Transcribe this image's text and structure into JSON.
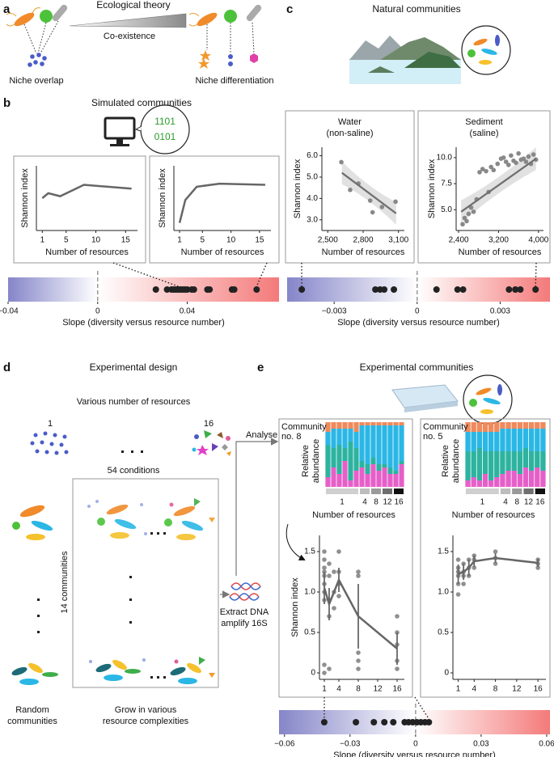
{
  "panels": {
    "a": {
      "label": "a",
      "title": "Ecological theory",
      "arrow": "Co-existence",
      "left": "Niche overlap",
      "right": "Niche differentiation"
    },
    "b": {
      "label": "b",
      "title": "Simulated communities",
      "code": [
        "1101",
        "0101"
      ]
    },
    "c": {
      "label": "c",
      "title": "Natural communities"
    },
    "d": {
      "label": "d",
      "title": "Experimental design",
      "resources": "Various number of resources",
      "min": "1",
      "max": "16",
      "conditions": "54 conditions",
      "communities": "14 communities",
      "random": [
        "Random",
        "communities"
      ],
      "grow": [
        "Grow in various",
        "resource complexities"
      ],
      "analyse": "Analyse",
      "extract": [
        "Extract DNA",
        "amplify 16S"
      ]
    },
    "e": {
      "label": "e",
      "title": "Experimental communities"
    }
  },
  "chart_data": [
    {
      "type": "line",
      "ylabel": "Shannon index",
      "xlabel": "Number of resources",
      "x": [
        1,
        2,
        4,
        8,
        16
      ],
      "values": [
        1.25,
        1.38,
        1.3,
        1.6,
        1.5
      ],
      "color": "#666666",
      "xlim": [
        0,
        17
      ],
      "ylim": [
        0.4,
        2.1
      ],
      "xticks": [
        1,
        5,
        10,
        15
      ]
    },
    {
      "type": "line",
      "ylabel": "Shannon index",
      "xlabel": "Number of resources",
      "x": [
        1,
        2,
        4,
        8,
        16
      ],
      "values": [
        0.6,
        1.2,
        1.55,
        1.63,
        1.6
      ],
      "color": "#666666",
      "xlim": [
        0,
        17
      ],
      "ylim": [
        0.4,
        2.1
      ],
      "xticks": [
        1,
        5,
        10,
        15
      ]
    },
    {
      "type": "strip",
      "xlabel": "Slope (diversity versus resource number)",
      "values": [
        0.026,
        0.031,
        0.033,
        0.034,
        0.035,
        0.036,
        0.037,
        0.038,
        0.039,
        0.04,
        0.042,
        0.043,
        0.049,
        0.05,
        0.06,
        0.061,
        0.071
      ],
      "color": "#222222",
      "gradient": [
        "#8585c9",
        "#ffffff",
        "#f47a7a"
      ],
      "xlim": [
        -0.04,
        0.081
      ],
      "xticks": [
        {
          "value": -0.04,
          "label": "−0.04"
        },
        0,
        0.04
      ]
    },
    {
      "type": "scatter",
      "title": [
        "Water",
        "(non-saline)"
      ],
      "ylabel": "Shannon index",
      "xlabel": "Number of resources",
      "x": [
        2615,
        2690,
        2760,
        2860,
        2880,
        2960,
        3075
      ],
      "values": [
        5.7,
        4.4,
        4.7,
        3.9,
        3.35,
        3.6,
        3.85
      ],
      "color": "#888888",
      "fit": {
        "x": [
          2620,
          3080
        ],
        "values": [
          5.2,
          3.3
        ],
        "color": "#6e6e6e"
      },
      "xlim": [
        2450,
        3150
      ],
      "ylim": [
        2.5,
        6.4
      ],
      "xticks": [
        {
          "value": 2500,
          "label": "2,500"
        },
        {
          "value": 2800,
          "label": "2,800"
        },
        {
          "value": 3100,
          "label": "3,100"
        }
      ],
      "yticks": [
        {
          "value": 3,
          "label": "3.0"
        },
        {
          "value": 4,
          "label": "4.0"
        },
        {
          "value": 5,
          "label": "5.0"
        },
        {
          "value": 6,
          "label": "6.0"
        }
      ]
    },
    {
      "type": "scatter",
      "title": [
        "Sediment",
        "(saline)"
      ],
      "ylabel": "Shannon index",
      "xlabel": "Number of resources",
      "x": [
        2480,
        2520,
        2560,
        2600,
        2650,
        2700,
        2760,
        2820,
        2880,
        2950,
        3000,
        3050,
        3100,
        3180,
        3250,
        3300,
        3350,
        3400,
        3450,
        3500,
        3550,
        3600,
        3650,
        3700,
        3750,
        3800,
        3850,
        3900,
        3950
      ],
      "values": [
        3.6,
        4.2,
        3.9,
        4.6,
        5.2,
        4.8,
        6.0,
        8.6,
        8.9,
        8.7,
        6.7,
        9.1,
        8.8,
        9.4,
        9.9,
        10.0,
        9.6,
        9.3,
        10.2,
        9.7,
        9.5,
        10.4,
        9.8,
        9.9,
        9.6,
        10.1,
        9.4,
        10.3,
        9.8
      ],
      "color": "#888888",
      "fit": {
        "x": [
          2450,
          3950
        ],
        "values": [
          4.8,
          9.9
        ],
        "color": "#6e6e6e"
      },
      "xlim": [
        2350,
        4100
      ],
      "ylim": [
        3,
        11
      ],
      "xticks": [
        {
          "value": 2400,
          "label": "2,400"
        },
        {
          "value": 3200,
          "label": "3,200"
        },
        {
          "value": 4000,
          "label": "4,000"
        }
      ],
      "yticks": [
        {
          "value": 5,
          "label": "5.0"
        },
        7.5,
        {
          "value": 10,
          "label": "10.0"
        }
      ]
    },
    {
      "type": "strip",
      "xlabel": "Slope (diversity versus resource number)",
      "values": [
        -0.00417,
        -0.00151,
        -0.00134,
        -0.00119,
        -0.00084,
        0.0007,
        0.00146,
        0.00166,
        0.00332,
        0.00355,
        0.00373,
        0.00428
      ],
      "color": "#222222",
      "gradient": [
        "#8585c9",
        "#ffffff",
        "#f47a7a"
      ],
      "xlim": [
        -0.0047,
        0.0048
      ],
      "xticks": [
        {
          "value": -0.003,
          "label": "−0.003"
        },
        0,
        0.003
      ]
    },
    {
      "type": "stacked_bar",
      "label": [
        "Community",
        "no. 8"
      ],
      "ylabel": [
        "Relative",
        "abundance"
      ],
      "xlabel": "Number of resources",
      "categories": [
        "1",
        null,
        null,
        null,
        null,
        null,
        "4",
        null,
        "8",
        null,
        "12",
        null,
        "16",
        null
      ],
      "group_colors": [
        "#cfcfcf",
        "#bdbdbd",
        "#9a9a9a",
        "#6f6f6f",
        "#111111"
      ],
      "ylim": [
        0,
        1
      ],
      "series": [
        {
          "color": "#e65fc9",
          "values": [
            0.15,
            0.3,
            0.2,
            0.4,
            0.1,
            0.25,
            0.3,
            0.2,
            0.35,
            0.25,
            0.3,
            0.2,
            0.2,
            0.35
          ]
        },
        {
          "color": "#2db39f",
          "values": [
            0.5,
            0.3,
            0.45,
            0.2,
            0.6,
            0.35,
            0.1,
            0.15,
            0.1,
            0.1,
            0.05,
            0.1,
            0.05,
            0.05
          ]
        },
        {
          "color": "#2bb7e6",
          "values": [
            0.2,
            0.3,
            0.25,
            0.3,
            0.2,
            0.25,
            0.55,
            0.6,
            0.5,
            0.6,
            0.6,
            0.65,
            0.7,
            0.55
          ]
        },
        {
          "color": "#ef8a5c",
          "values": [
            0.15,
            0.1,
            0.1,
            0.1,
            0.1,
            0.15,
            0.05,
            0.05,
            0.05,
            0.05,
            0.05,
            0.05,
            0.05,
            0.05
          ]
        }
      ]
    },
    {
      "type": "stacked_bar",
      "label": [
        "Community",
        "no. 5"
      ],
      "ylabel": [
        "Relative",
        "abundance"
      ],
      "xlabel": "Number of resources",
      "categories": [
        "1",
        null,
        null,
        null,
        null,
        null,
        "4",
        null,
        "8",
        null,
        "12",
        null,
        "16",
        null
      ],
      "group_colors": [
        "#cfcfcf",
        "#bdbdbd",
        "#9a9a9a",
        "#6f6f6f",
        "#111111"
      ],
      "ylim": [
        0,
        1
      ],
      "series": [
        {
          "color": "#e65fc9",
          "values": [
            0.1,
            0.15,
            0.1,
            0.2,
            0.1,
            0.15,
            0.2,
            0.25,
            0.25,
            0.2,
            0.3,
            0.25,
            0.3,
            0.25
          ]
        },
        {
          "color": "#2db39f",
          "values": [
            0.45,
            0.4,
            0.5,
            0.35,
            0.45,
            0.4,
            0.35,
            0.3,
            0.3,
            0.35,
            0.3,
            0.3,
            0.25,
            0.3
          ]
        },
        {
          "color": "#2bb7e6",
          "values": [
            0.3,
            0.3,
            0.25,
            0.3,
            0.3,
            0.3,
            0.35,
            0.35,
            0.35,
            0.35,
            0.3,
            0.35,
            0.35,
            0.35
          ]
        },
        {
          "color": "#ef8a5c",
          "values": [
            0.15,
            0.15,
            0.15,
            0.15,
            0.15,
            0.15,
            0.1,
            0.1,
            0.1,
            0.1,
            0.1,
            0.1,
            0.1,
            0.1
          ]
        }
      ]
    },
    {
      "type": "scatter",
      "ylabel": "Shannon index",
      "x": [
        1,
        1,
        1,
        1,
        1,
        1,
        1,
        1,
        1,
        1,
        2,
        2,
        2,
        2,
        2,
        3,
        3,
        3,
        4,
        4,
        4,
        4,
        8,
        8,
        8,
        8,
        8,
        16,
        16,
        16,
        16,
        16
      ],
      "values": [
        1.5,
        1.4,
        1.3,
        1.25,
        1.2,
        1.1,
        1.0,
        0.9,
        0.1,
        0,
        1.35,
        1.2,
        0.9,
        0.7,
        0.05,
        1.25,
        1.0,
        0.8,
        1.5,
        1.25,
        1.1,
        0.95,
        1.25,
        1.2,
        0.25,
        0.15,
        0.05,
        0.7,
        0.5,
        0.35,
        0.15,
        0.05
      ],
      "color": "#555555",
      "mean": {
        "x": [
          1,
          2,
          4,
          8,
          16
        ],
        "values": [
          1.05,
          0.85,
          1.15,
          0.7,
          0.3
        ],
        "error": [
          0.2,
          0.2,
          0.15,
          0.4,
          0.2
        ],
        "color": "#666666"
      },
      "xlim": [
        0,
        17.5
      ],
      "ylim": [
        -0.08,
        1.7
      ],
      "xticks": [
        1,
        4,
        8,
        12,
        16
      ],
      "yticks": [
        0,
        0.5,
        {
          "value": 1,
          "label": "1.0"
        },
        1.5
      ]
    },
    {
      "type": "scatter",
      "x": [
        1,
        1,
        1,
        1,
        1,
        1,
        2,
        2,
        2,
        2,
        3,
        3,
        3,
        4,
        4,
        4,
        8,
        8,
        8,
        16,
        16,
        16
      ],
      "values": [
        1.4,
        1.3,
        1.25,
        1.2,
        1.1,
        0.97,
        1.35,
        1.25,
        1.2,
        1.1,
        1.4,
        1.3,
        1.2,
        1.45,
        1.4,
        1.3,
        1.5,
        1.42,
        1.35,
        1.4,
        1.35,
        1.3
      ],
      "color": "#555555",
      "mean": {
        "x": [
          1,
          2,
          3,
          4,
          8,
          16
        ],
        "values": [
          1.22,
          1.25,
          1.3,
          1.38,
          1.42,
          1.36
        ],
        "error": [
          0.12,
          0.1,
          0.1,
          0.07,
          0.06,
          0.05
        ],
        "color": "#666666"
      },
      "xlim": [
        0,
        17.5
      ],
      "ylim": [
        -0.08,
        1.7
      ],
      "xticks": [
        1,
        4,
        8,
        12,
        16
      ],
      "yticks": [
        0,
        0.5,
        {
          "value": 1,
          "label": "1.0"
        },
        1.5
      ]
    },
    {
      "type": "strip",
      "xlabel": "Slope (diversity versus resource number)",
      "values": [
        -0.0418,
        -0.0273,
        -0.0191,
        -0.0143,
        -0.0102,
        -0.005,
        -0.0032,
        -0.0013,
        0.0006,
        0.0024,
        0.0043,
        0.0061
      ],
      "color": "#222222",
      "gradient": [
        "#8585c9",
        "#ffffff",
        "#f47a7a"
      ],
      "xlim": [
        -0.0625,
        0.0615
      ],
      "xticks": [
        {
          "value": -0.06,
          "label": "−0.06"
        },
        {
          "value": -0.03,
          "label": "−0.03"
        },
        0,
        0.03,
        0.06
      ]
    }
  ]
}
